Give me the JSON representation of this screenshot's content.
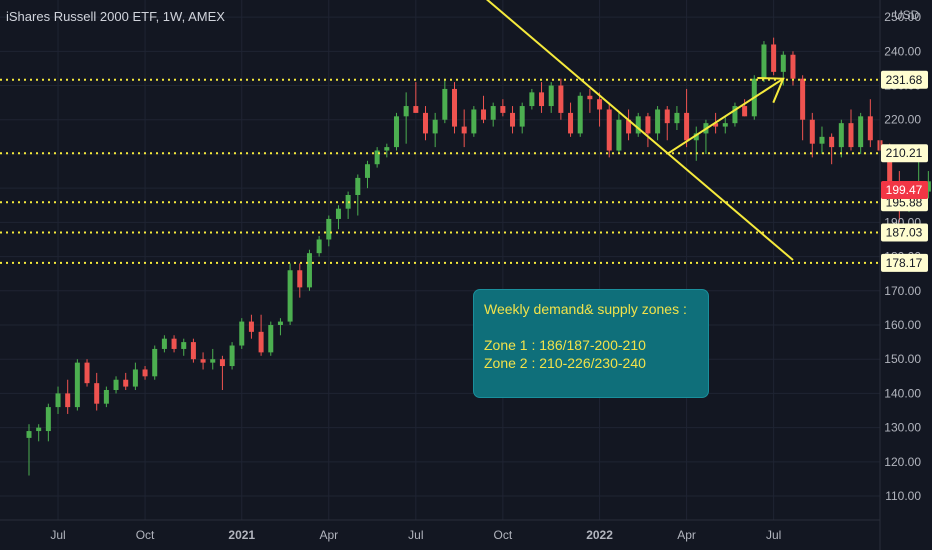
{
  "title": "iShares Russell 2000 ETF, 1W, AMEX",
  "note": {
    "heading": "Weekly demand& supply zones :",
    "line1": "Zone 1 : 186/187-200-210",
    "line2": "Zone 2 : 210-226/230-240"
  },
  "colors": {
    "background": "#131722",
    "up": "#26a69a",
    "up_bright": "#4caf50",
    "down": "#ef5350",
    "level_line": "#f5ea3c",
    "trend_line": "#f5ea3c",
    "note_bg": "#0f6f7a",
    "note_text": "#f2e24a",
    "axis_text": "#b2b5be",
    "grid": "#1f2433",
    "current_price_bg": "#f23645"
  },
  "chart_data": {
    "type": "candlestick",
    "currency": "USD",
    "timeframe": "1W",
    "ylim": [
      103,
      255
    ],
    "y_ticks": [
      110,
      120,
      130,
      140,
      150,
      160,
      170,
      180,
      190,
      200,
      210,
      220,
      230,
      240,
      250
    ],
    "y_tick_labels": [
      "110.00",
      "120.00",
      "130.00",
      "140.00",
      "150.00",
      "160.00",
      "170.00",
      "180.00",
      "190.00",
      "200.00",
      "210.00",
      "220.00",
      "230.00",
      "240.00",
      "250.00"
    ],
    "x_range_weeks": [
      -3,
      88
    ],
    "x_ticks": [
      {
        "label": "Jul",
        "week": 3,
        "bold": false
      },
      {
        "label": "Oct",
        "week": 12,
        "bold": false
      },
      {
        "label": "2021",
        "week": 22,
        "bold": true
      },
      {
        "label": "Apr",
        "week": 31,
        "bold": false
      },
      {
        "label": "Jul",
        "week": 40,
        "bold": false
      },
      {
        "label": "Oct",
        "week": 49,
        "bold": false
      },
      {
        "label": "2022",
        "week": 59,
        "bold": true
      },
      {
        "label": "Apr",
        "week": 68,
        "bold": false
      },
      {
        "label": "Jul",
        "week": 77,
        "bold": false
      }
    ],
    "horizontal_levels": [
      {
        "value": 231.68,
        "label": "231.68"
      },
      {
        "value": 210.21,
        "label": "210.21"
      },
      {
        "value": 195.88,
        "label": "195.88"
      },
      {
        "value": 187.03,
        "label": "187.03"
      },
      {
        "value": 178.17,
        "label": "178.17"
      }
    ],
    "current_price": {
      "value": 199.47,
      "label": "199.47"
    },
    "trend_line": {
      "from": [
        47,
        256
      ],
      "to": [
        79,
        179
      ]
    },
    "arrow": {
      "from": [
        66,
        210
      ],
      "to": [
        78,
        232
      ]
    },
    "candles": [
      {
        "o": 127,
        "h": 131,
        "l": 116,
        "c": 129
      },
      {
        "o": 129,
        "h": 131,
        "l": 126,
        "c": 130
      },
      {
        "o": 129,
        "h": 137,
        "l": 126,
        "c": 136
      },
      {
        "o": 136,
        "h": 142,
        "l": 134,
        "c": 140
      },
      {
        "o": 140,
        "h": 144,
        "l": 134,
        "c": 136
      },
      {
        "o": 136,
        "h": 150,
        "l": 135,
        "c": 149
      },
      {
        "o": 149,
        "h": 150,
        "l": 142,
        "c": 143
      },
      {
        "o": 143,
        "h": 146,
        "l": 135,
        "c": 137
      },
      {
        "o": 137,
        "h": 142,
        "l": 136,
        "c": 141
      },
      {
        "o": 141,
        "h": 145,
        "l": 140,
        "c": 144
      },
      {
        "o": 144,
        "h": 146,
        "l": 141,
        "c": 142
      },
      {
        "o": 142,
        "h": 149,
        "l": 141,
        "c": 147
      },
      {
        "o": 147,
        "h": 148,
        "l": 144,
        "c": 145
      },
      {
        "o": 145,
        "h": 154,
        "l": 144,
        "c": 153
      },
      {
        "o": 153,
        "h": 157,
        "l": 152,
        "c": 156
      },
      {
        "o": 156,
        "h": 157,
        "l": 152,
        "c": 153
      },
      {
        "o": 153,
        "h": 156,
        "l": 151,
        "c": 155
      },
      {
        "o": 155,
        "h": 156,
        "l": 149,
        "c": 150
      },
      {
        "o": 150,
        "h": 152,
        "l": 147,
        "c": 149
      },
      {
        "o": 149,
        "h": 153,
        "l": 147,
        "c": 150
      },
      {
        "o": 150,
        "h": 151,
        "l": 141,
        "c": 148
      },
      {
        "o": 148,
        "h": 155,
        "l": 147,
        "c": 154
      },
      {
        "o": 154,
        "h": 162,
        "l": 153,
        "c": 161
      },
      {
        "o": 161,
        "h": 163,
        "l": 156,
        "c": 158
      },
      {
        "o": 158,
        "h": 163,
        "l": 151,
        "c": 152
      },
      {
        "o": 152,
        "h": 161,
        "l": 151,
        "c": 160
      },
      {
        "o": 160,
        "h": 162,
        "l": 157,
        "c": 161
      },
      {
        "o": 161,
        "h": 178,
        "l": 160,
        "c": 176
      },
      {
        "o": 176,
        "h": 178,
        "l": 168,
        "c": 171
      },
      {
        "o": 171,
        "h": 182,
        "l": 170,
        "c": 181
      },
      {
        "o": 181,
        "h": 186,
        "l": 180,
        "c": 185
      },
      {
        "o": 185,
        "h": 192,
        "l": 183,
        "c": 191
      },
      {
        "o": 191,
        "h": 195,
        "l": 188,
        "c": 194
      },
      {
        "o": 194,
        "h": 199,
        "l": 191,
        "c": 198
      },
      {
        "o": 198,
        "h": 204,
        "l": 192,
        "c": 203
      },
      {
        "o": 203,
        "h": 208,
        "l": 200,
        "c": 207
      },
      {
        "o": 207,
        "h": 212,
        "l": 206,
        "c": 211
      },
      {
        "o": 211,
        "h": 213,
        "l": 209,
        "c": 212
      },
      {
        "o": 212,
        "h": 222,
        "l": 211,
        "c": 221
      },
      {
        "o": 221,
        "h": 228,
        "l": 213,
        "c": 224
      },
      {
        "o": 224,
        "h": 231,
        "l": 222,
        "c": 222
      },
      {
        "o": 222,
        "h": 224,
        "l": 214,
        "c": 216
      },
      {
        "o": 216,
        "h": 222,
        "l": 212,
        "c": 220
      },
      {
        "o": 220,
        "h": 232,
        "l": 219,
        "c": 229
      },
      {
        "o": 229,
        "h": 231,
        "l": 216,
        "c": 218
      },
      {
        "o": 218,
        "h": 223,
        "l": 212,
        "c": 216
      },
      {
        "o": 216,
        "h": 224,
        "l": 215,
        "c": 223
      },
      {
        "o": 223,
        "h": 227,
        "l": 219,
        "c": 220
      },
      {
        "o": 220,
        "h": 225,
        "l": 218,
        "c": 224
      },
      {
        "o": 224,
        "h": 226,
        "l": 221,
        "c": 222
      },
      {
        "o": 222,
        "h": 224,
        "l": 216,
        "c": 218
      },
      {
        "o": 218,
        "h": 225,
        "l": 216,
        "c": 224
      },
      {
        "o": 224,
        "h": 229,
        "l": 223,
        "c": 228
      },
      {
        "o": 228,
        "h": 231,
        "l": 222,
        "c": 224
      },
      {
        "o": 224,
        "h": 231,
        "l": 222,
        "c": 230
      },
      {
        "o": 230,
        "h": 232,
        "l": 220,
        "c": 222
      },
      {
        "o": 222,
        "h": 225,
        "l": 215,
        "c": 216
      },
      {
        "o": 216,
        "h": 228,
        "l": 215,
        "c": 227
      },
      {
        "o": 227,
        "h": 229,
        "l": 222,
        "c": 226
      },
      {
        "o": 226,
        "h": 228,
        "l": 218,
        "c": 223
      },
      {
        "o": 223,
        "h": 225,
        "l": 209,
        "c": 211
      },
      {
        "o": 211,
        "h": 222,
        "l": 210,
        "c": 220
      },
      {
        "o": 220,
        "h": 223,
        "l": 214,
        "c": 216
      },
      {
        "o": 216,
        "h": 222,
        "l": 215,
        "c": 221
      },
      {
        "o": 221,
        "h": 222,
        "l": 212,
        "c": 216
      },
      {
        "o": 216,
        "h": 224,
        "l": 214,
        "c": 223
      },
      {
        "o": 223,
        "h": 224,
        "l": 214,
        "c": 219
      },
      {
        "o": 219,
        "h": 224,
        "l": 217,
        "c": 222
      },
      {
        "o": 222,
        "h": 229,
        "l": 212,
        "c": 214
      },
      {
        "o": 214,
        "h": 218,
        "l": 208,
        "c": 216
      },
      {
        "o": 216,
        "h": 220,
        "l": 210,
        "c": 219
      },
      {
        "o": 219,
        "h": 222,
        "l": 216,
        "c": 218
      },
      {
        "o": 218,
        "h": 221,
        "l": 216,
        "c": 219
      },
      {
        "o": 219,
        "h": 225,
        "l": 218,
        "c": 224
      },
      {
        "o": 224,
        "h": 226,
        "l": 221,
        "c": 221
      },
      {
        "o": 221,
        "h": 233,
        "l": 220,
        "c": 232
      },
      {
        "o": 232,
        "h": 243,
        "l": 231,
        "c": 242
      },
      {
        "o": 242,
        "h": 244,
        "l": 233,
        "c": 234
      },
      {
        "o": 234,
        "h": 240,
        "l": 230,
        "c": 239
      },
      {
        "o": 239,
        "h": 240,
        "l": 230,
        "c": 232
      },
      {
        "o": 232,
        "h": 233,
        "l": 214,
        "c": 220
      },
      {
        "o": 220,
        "h": 222,
        "l": 209,
        "c": 213
      },
      {
        "o": 213,
        "h": 218,
        "l": 210,
        "c": 215
      },
      {
        "o": 215,
        "h": 216,
        "l": 207,
        "c": 212
      },
      {
        "o": 212,
        "h": 220,
        "l": 209,
        "c": 219
      },
      {
        "o": 219,
        "h": 223,
        "l": 211,
        "c": 212
      },
      {
        "o": 212,
        "h": 222,
        "l": 210,
        "c": 221
      },
      {
        "o": 221,
        "h": 226,
        "l": 212,
        "c": 214
      },
      {
        "o": 214,
        "h": 216,
        "l": 196,
        "c": 211
      },
      {
        "o": 211,
        "h": 213,
        "l": 194,
        "c": 199
      },
      {
        "o": 199,
        "h": 205,
        "l": 190,
        "c": 195
      },
      {
        "o": 195,
        "h": 200,
        "l": 193,
        "c": 197
      },
      {
        "o": 197,
        "h": 208,
        "l": 195,
        "c": 199
      },
      {
        "o": 199,
        "h": 205,
        "l": 197,
        "c": 202
      },
      {
        "o": 202,
        "h": 204,
        "l": 198,
        "c": 199.47
      }
    ]
  }
}
